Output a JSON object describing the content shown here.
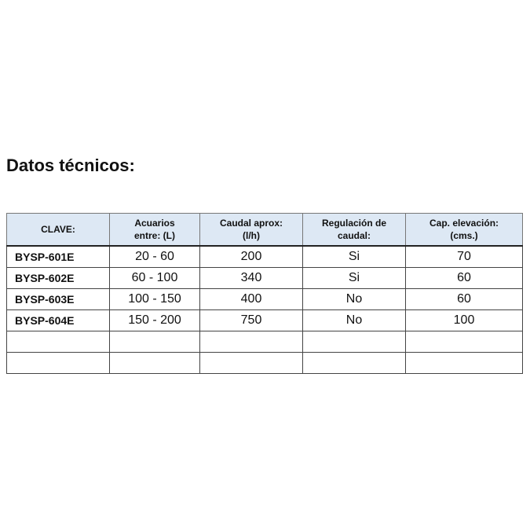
{
  "title": "Datos técnicos:",
  "table": {
    "headers": [
      "CLAVE:",
      "Acuarios\nentre: (L)",
      "Caudal aprox:\n(l/h)",
      "Regulación de\ncaudal:",
      "Cap. elevación:\n(cms.)"
    ],
    "rows": [
      [
        "BYSP-601E",
        "20 - 60",
        "200",
        "Si",
        "70"
      ],
      [
        "BYSP-602E",
        "60 - 100",
        "340",
        "Si",
        "60"
      ],
      [
        "BYSP-603E",
        "100 - 150",
        "400",
        "No",
        "60"
      ],
      [
        "BYSP-604E",
        "150 - 200",
        "750",
        "No",
        "100"
      ],
      [
        "",
        "",
        "",
        "",
        ""
      ],
      [
        "",
        "",
        "",
        "",
        ""
      ]
    ]
  }
}
